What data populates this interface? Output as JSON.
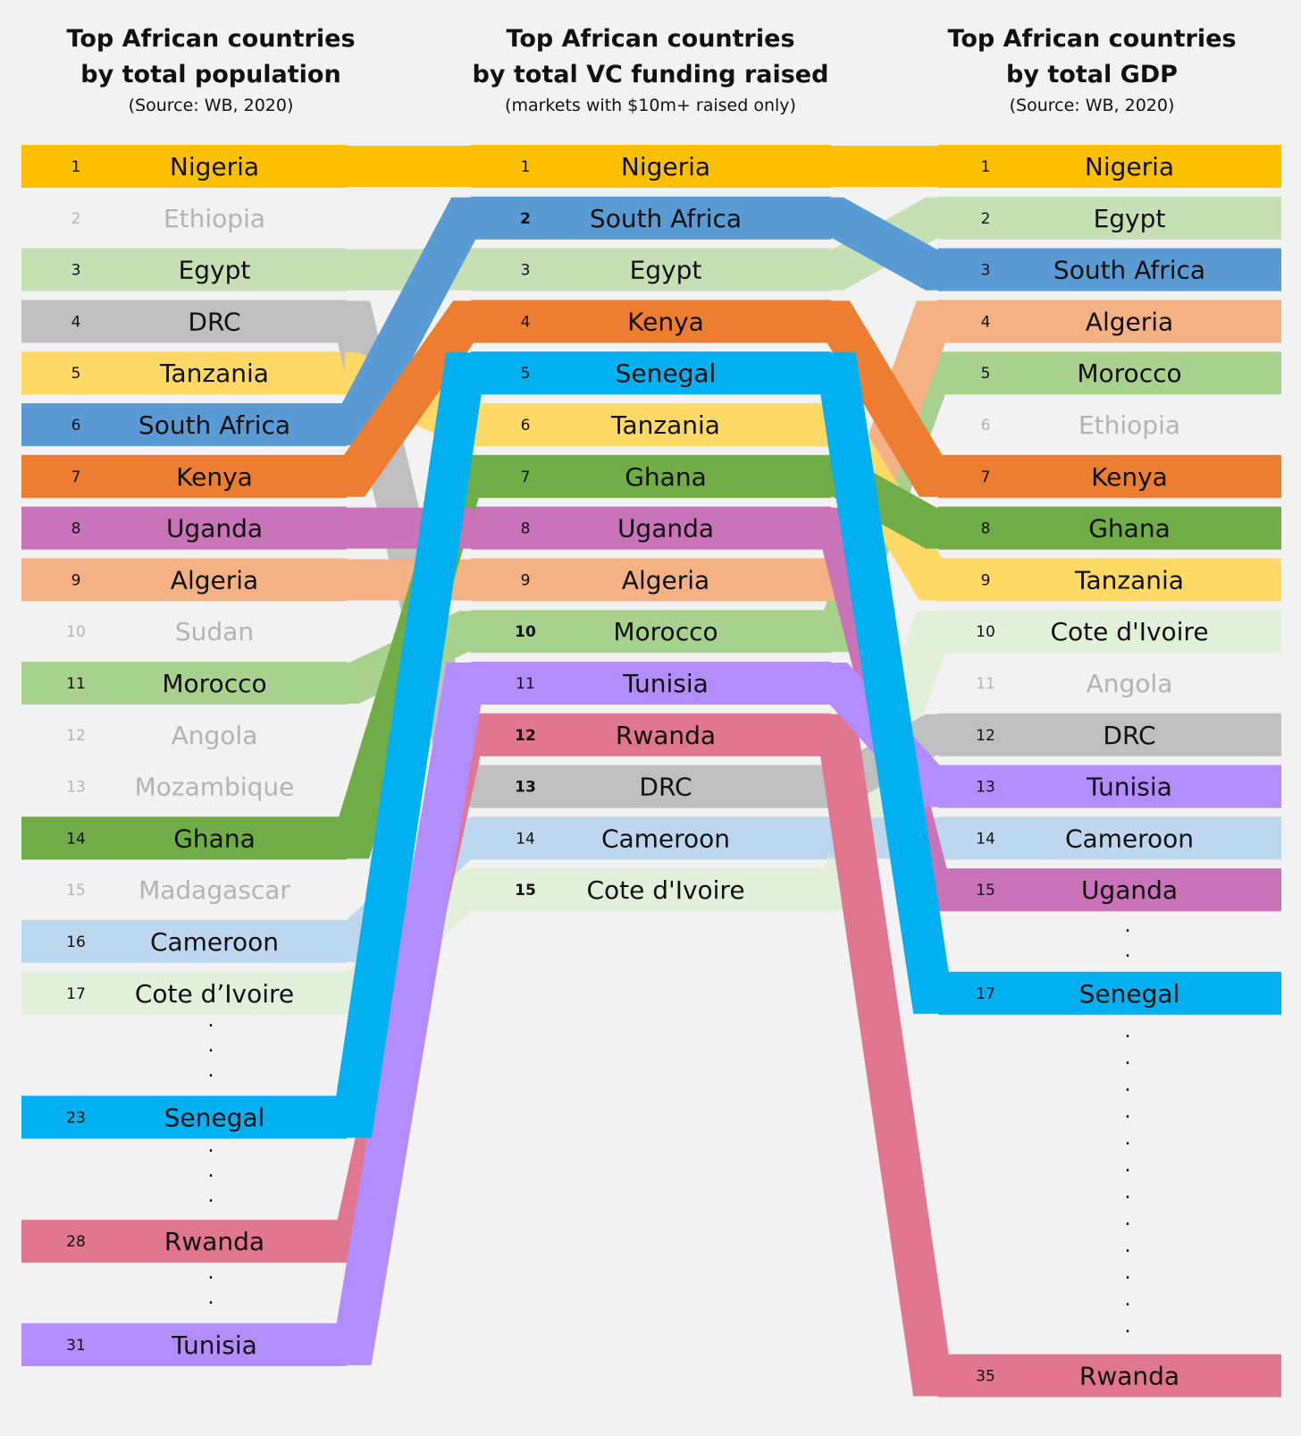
{
  "colors": {
    "Nigeria": "#fcc000",
    "South Africa": "#5b9bd5",
    "Egypt": "#c5e0b4",
    "Kenya": "#ed7d31",
    "Senegal": "#00b0f0",
    "Tanzania": "#ffd966",
    "Ghana": "#70ad47",
    "Uganda": "#c973b8",
    "Algeria": "#f4b183",
    "Morocco": "#a9d18e",
    "Tunisia": "#b38cff",
    "Rwanda": "#e0768f",
    "DRC": "#bfbfbf",
    "Cameroon": "#bdd7ee",
    "Cote d'Ivoire": "#e2f0d9",
    "muted_text": "#b3b3b3"
  },
  "columns": [
    {
      "id": "population",
      "title_line1": "Top African countries",
      "title_line2": "by total population",
      "subtitle": "(Source: WB, 2020)",
      "items": [
        {
          "rank": 1,
          "label": "Nigeria",
          "country": "Nigeria"
        },
        {
          "rank": 2,
          "label": "Ethiopia",
          "muted": true
        },
        {
          "rank": 3,
          "label": "Egypt",
          "country": "Egypt"
        },
        {
          "rank": 4,
          "label": "DRC",
          "country": "DRC"
        },
        {
          "rank": 5,
          "label": "Tanzania",
          "country": "Tanzania"
        },
        {
          "rank": 6,
          "label": "South Africa",
          "country": "South Africa"
        },
        {
          "rank": 7,
          "label": "Kenya",
          "country": "Kenya"
        },
        {
          "rank": 8,
          "label": "Uganda",
          "country": "Uganda"
        },
        {
          "rank": 9,
          "label": "Algeria",
          "country": "Algeria"
        },
        {
          "rank": 10,
          "label": "Sudan",
          "muted": true
        },
        {
          "rank": 11,
          "label": "Morocco",
          "country": "Morocco"
        },
        {
          "rank": 12,
          "label": "Angola",
          "muted": true
        },
        {
          "rank": 13,
          "label": "Mozambique",
          "muted": true
        },
        {
          "rank": 14,
          "label": "Ghana",
          "country": "Ghana"
        },
        {
          "rank": 15,
          "label": "Madagascar",
          "muted": true
        },
        {
          "rank": 16,
          "label": "Cameroon",
          "country": "Cameroon"
        },
        {
          "rank": 17,
          "label": "Cote d’Ivoire",
          "country": "Cote d'Ivoire"
        },
        {
          "rank": 23,
          "label": "Senegal",
          "country": "Senegal"
        },
        {
          "rank": 28,
          "label": "Rwanda",
          "country": "Rwanda"
        },
        {
          "rank": 31,
          "label": "Tunisia",
          "country": "Tunisia"
        }
      ]
    },
    {
      "id": "vc",
      "title_line1": "Top African countries",
      "title_line2": "by total VC funding raised",
      "subtitle": "(markets with $10m+ raised only)",
      "items": [
        {
          "rank": 1,
          "label": "Nigeria",
          "country": "Nigeria"
        },
        {
          "rank": 2,
          "label": "South Africa",
          "country": "South Africa",
          "bold_rank": true
        },
        {
          "rank": 3,
          "label": "Egypt",
          "country": "Egypt"
        },
        {
          "rank": 4,
          "label": "Kenya",
          "country": "Kenya"
        },
        {
          "rank": 5,
          "label": "Senegal",
          "country": "Senegal"
        },
        {
          "rank": 6,
          "label": "Tanzania",
          "country": "Tanzania"
        },
        {
          "rank": 7,
          "label": "Ghana",
          "country": "Ghana"
        },
        {
          "rank": 8,
          "label": "Uganda",
          "country": "Uganda"
        },
        {
          "rank": 9,
          "label": "Algeria",
          "country": "Algeria"
        },
        {
          "rank": 10,
          "label": "Morocco",
          "country": "Morocco",
          "bold_rank": true
        },
        {
          "rank": 11,
          "label": "Tunisia",
          "country": "Tunisia"
        },
        {
          "rank": 12,
          "label": "Rwanda",
          "country": "Rwanda",
          "bold_rank": true
        },
        {
          "rank": 13,
          "label": "DRC",
          "country": "DRC",
          "bold_rank": true
        },
        {
          "rank": 14,
          "label": "Cameroon",
          "country": "Cameroon"
        },
        {
          "rank": 15,
          "label": "Cote d'Ivoire",
          "country": "Cote d'Ivoire",
          "bold_rank": true
        }
      ]
    },
    {
      "id": "gdp",
      "title_line1": "Top African countries",
      "title_line2": "by total GDP",
      "subtitle": "(Source: WB, 2020)",
      "items": [
        {
          "rank": 1,
          "label": "Nigeria",
          "country": "Nigeria"
        },
        {
          "rank": 2,
          "label": "Egypt",
          "country": "Egypt"
        },
        {
          "rank": 3,
          "label": "South Africa",
          "country": "South Africa"
        },
        {
          "rank": 4,
          "label": "Algeria",
          "country": "Algeria"
        },
        {
          "rank": 5,
          "label": "Morocco",
          "country": "Morocco"
        },
        {
          "rank": 6,
          "label": "Ethiopia",
          "muted": true
        },
        {
          "rank": 7,
          "label": "Kenya",
          "country": "Kenya"
        },
        {
          "rank": 8,
          "label": "Ghana",
          "country": "Ghana"
        },
        {
          "rank": 9,
          "label": "Tanzania",
          "country": "Tanzania"
        },
        {
          "rank": 10,
          "label": "Cote d'Ivoire",
          "country": "Cote d'Ivoire"
        },
        {
          "rank": 11,
          "label": "Angola",
          "muted": true
        },
        {
          "rank": 12,
          "label": "DRC",
          "country": "DRC"
        },
        {
          "rank": 13,
          "label": "Tunisia",
          "country": "Tunisia"
        },
        {
          "rank": 14,
          "label": "Cameroon",
          "country": "Cameroon"
        },
        {
          "rank": 15,
          "label": "Uganda",
          "country": "Uganda"
        },
        {
          "rank": 17,
          "label": "Senegal",
          "country": "Senegal"
        },
        {
          "rank": 35,
          "label": "Rwanda",
          "country": "Rwanda"
        }
      ]
    }
  ],
  "ellipsis": "."
}
